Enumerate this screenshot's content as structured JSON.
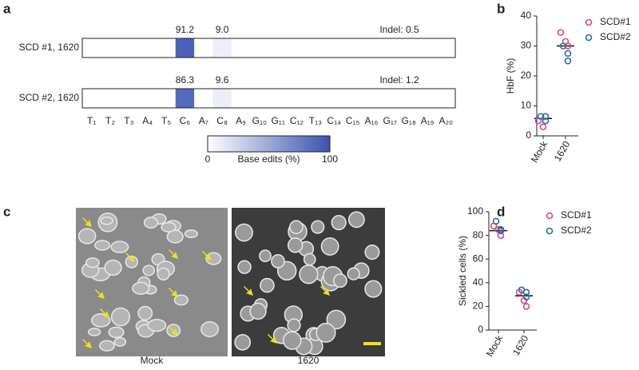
{
  "panels": [
    "a",
    "b",
    "c",
    "d"
  ],
  "images": {
    "captions": [
      "Mock",
      "1620"
    ]
  },
  "chart_data": [
    {
      "type": "heatmap",
      "categories": [
        "T₁",
        "T₂",
        "T₃",
        "A₄",
        "T₅",
        "C₆",
        "A₇",
        "C₈",
        "A₉",
        "G₁₀",
        "G₁₁",
        "C₁₂",
        "T₁₃",
        "C₁₄",
        "C₁₅",
        "A₁₆",
        "G₁₇",
        "G₁₈",
        "A₁₉",
        "A₂₀"
      ],
      "highlight": [
        "C₆",
        "C₈"
      ],
      "highlight_color": "#9b4fb0",
      "rows": [
        {
          "name": "SCD #1, 1620",
          "values": [
            null,
            null,
            null,
            null,
            null,
            91.2,
            null,
            9.0,
            null,
            null,
            null,
            null,
            null,
            null,
            null,
            null,
            null,
            null,
            null,
            null
          ],
          "value_labels": [
            null,
            null,
            null,
            null,
            null,
            "91.2",
            null,
            "9.0",
            null,
            null,
            null,
            null,
            null,
            null,
            null,
            null,
            null,
            null,
            null,
            null
          ],
          "annotation": "Indel: 0.5"
        },
        {
          "name": "SCD #2, 1620",
          "values": [
            null,
            null,
            null,
            null,
            null,
            86.3,
            null,
            9.6,
            null,
            null,
            null,
            null,
            null,
            null,
            null,
            null,
            null,
            null,
            null,
            null
          ],
          "value_labels": [
            null,
            null,
            null,
            null,
            null,
            "86.3",
            null,
            "9.6",
            null,
            null,
            null,
            null,
            null,
            null,
            null,
            null,
            null,
            null,
            null,
            null
          ],
          "annotation": "Indel: 1.2"
        }
      ],
      "colorbar": {
        "label": "Base edits (%)",
        "lim": [
          0,
          100
        ],
        "ticks": [
          0,
          100
        ],
        "colors": [
          "#ffffff",
          "#3a52b0"
        ]
      }
    },
    {
      "type": "scatter",
      "ylabel": "HbF (%)",
      "categories": [
        "Mock",
        "1620"
      ],
      "ylim": [
        0,
        40
      ],
      "yticks": [
        0,
        10,
        20,
        30,
        40
      ],
      "medians": [
        5.8,
        30
      ],
      "series": [
        {
          "name": "SCD#1",
          "color": "#e0457b",
          "values": [
            [
              5,
              3,
              6.5
            ],
            [
              34.5,
              31.5,
              30
            ]
          ]
        },
        {
          "name": "SCD#2",
          "color": "#2b6ca8",
          "values": [
            [
              6.5,
              6.5,
              5
            ],
            [
              30,
              27.5,
              25
            ]
          ]
        }
      ]
    },
    {
      "type": "scatter",
      "ylabel": "Sickled cells (%)",
      "categories": [
        "Mock",
        "1620"
      ],
      "ylim": [
        0,
        100
      ],
      "yticks": [
        0,
        20,
        40,
        60,
        80,
        100
      ],
      "medians": [
        84,
        29
      ],
      "series": [
        {
          "name": "SCD#1",
          "color": "#e0457b",
          "values": [
            [
              88,
              85,
              80
            ],
            [
              32,
              25,
              20
            ]
          ]
        },
        {
          "name": "SCD#2",
          "color": "#2b6ca8",
          "values": [
            [
              92,
              84,
              85
            ],
            [
              34,
              32,
              28
            ]
          ]
        }
      ]
    }
  ]
}
